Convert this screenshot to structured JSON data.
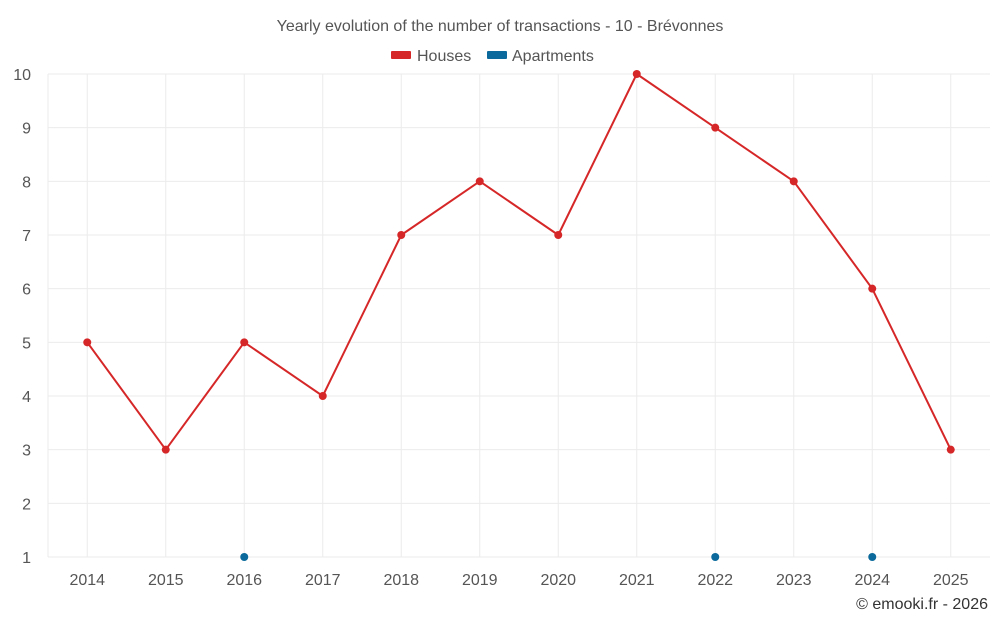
{
  "colors": {
    "houses": "#d62728",
    "apartments": "#0b6a9b",
    "grid": "#ebebeb",
    "text": "#555555"
  },
  "chart_data": {
    "type": "line",
    "title": "Yearly evolution of the number of transactions - 10 - Brévonnes",
    "xlabel": "",
    "ylabel": "",
    "categories": [
      "2014",
      "2015",
      "2016",
      "2017",
      "2018",
      "2019",
      "2020",
      "2021",
      "2022",
      "2023",
      "2024",
      "2025"
    ],
    "y_ticks": [
      "1",
      "2",
      "3",
      "4",
      "5",
      "6",
      "7",
      "8",
      "9",
      "10"
    ],
    "ylim": [
      1,
      10
    ],
    "grid": true,
    "legend_position": "top-center",
    "series": [
      {
        "name": "Houses",
        "color": "#d62728",
        "values": [
          5,
          3,
          5,
          4,
          7,
          8,
          7,
          10,
          9,
          8,
          6,
          3
        ]
      },
      {
        "name": "Apartments",
        "color": "#0b6a9b",
        "values": [
          null,
          null,
          1,
          null,
          null,
          null,
          null,
          null,
          1,
          null,
          1,
          null
        ]
      }
    ]
  },
  "credit": "© emooki.fr - 2026"
}
